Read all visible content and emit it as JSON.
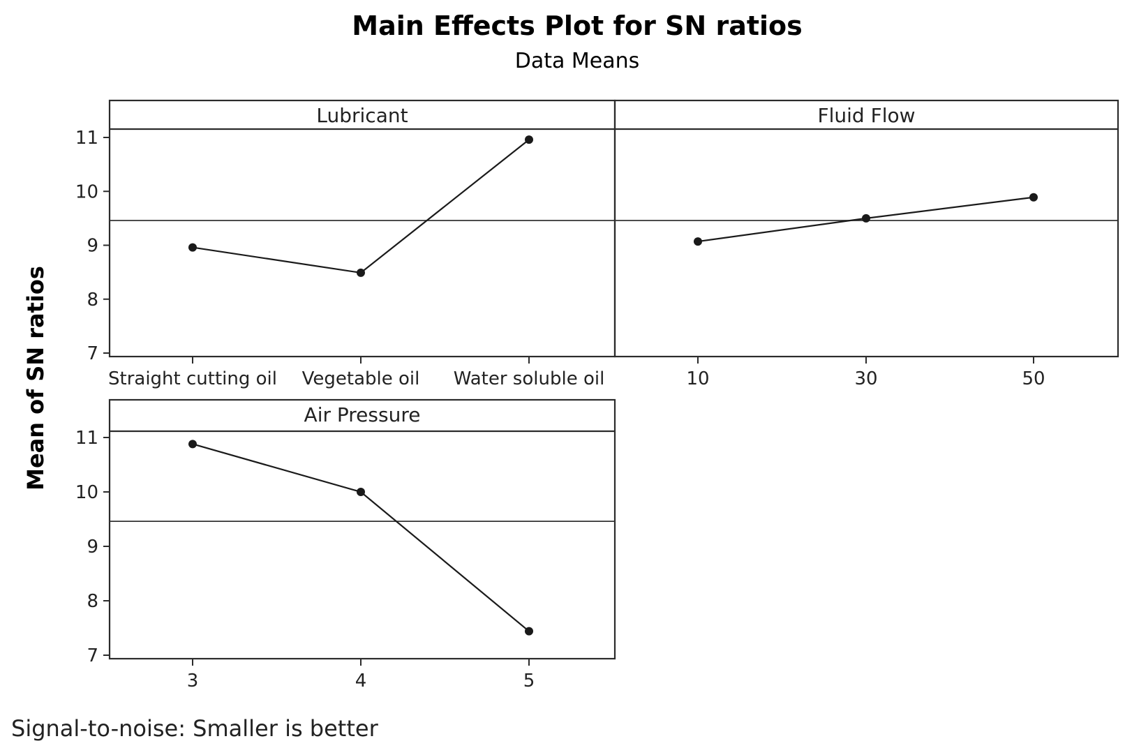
{
  "chart_data": {
    "type": "line",
    "title": "Main Effects Plot for SN ratios",
    "subtitle": "Data Means",
    "ylabel": "Mean of SN ratios",
    "ylim": [
      7,
      11
    ],
    "yticks": [
      "7",
      "8",
      "9",
      "10",
      "11"
    ],
    "overall_mean": 9.46,
    "footnote": "Signal-to-noise: Smaller is better",
    "panels": [
      {
        "name": "Lubricant",
        "categories": [
          "Straight cutting oil",
          "Vegetable oil",
          "Water soluble oil"
        ],
        "values": [
          8.96,
          8.49,
          10.96
        ]
      },
      {
        "name": "Fluid Flow",
        "categories": [
          "10",
          "30",
          "50"
        ],
        "values": [
          9.07,
          9.5,
          9.89
        ]
      },
      {
        "name": "Air Pressure",
        "categories": [
          "3",
          "4",
          "5"
        ],
        "values": [
          10.88,
          10.0,
          7.44
        ]
      }
    ]
  },
  "colors": {
    "line": "#1a1a1a",
    "frame": "#2b2b2b",
    "reference": "#333333",
    "background": "#ffffff"
  }
}
